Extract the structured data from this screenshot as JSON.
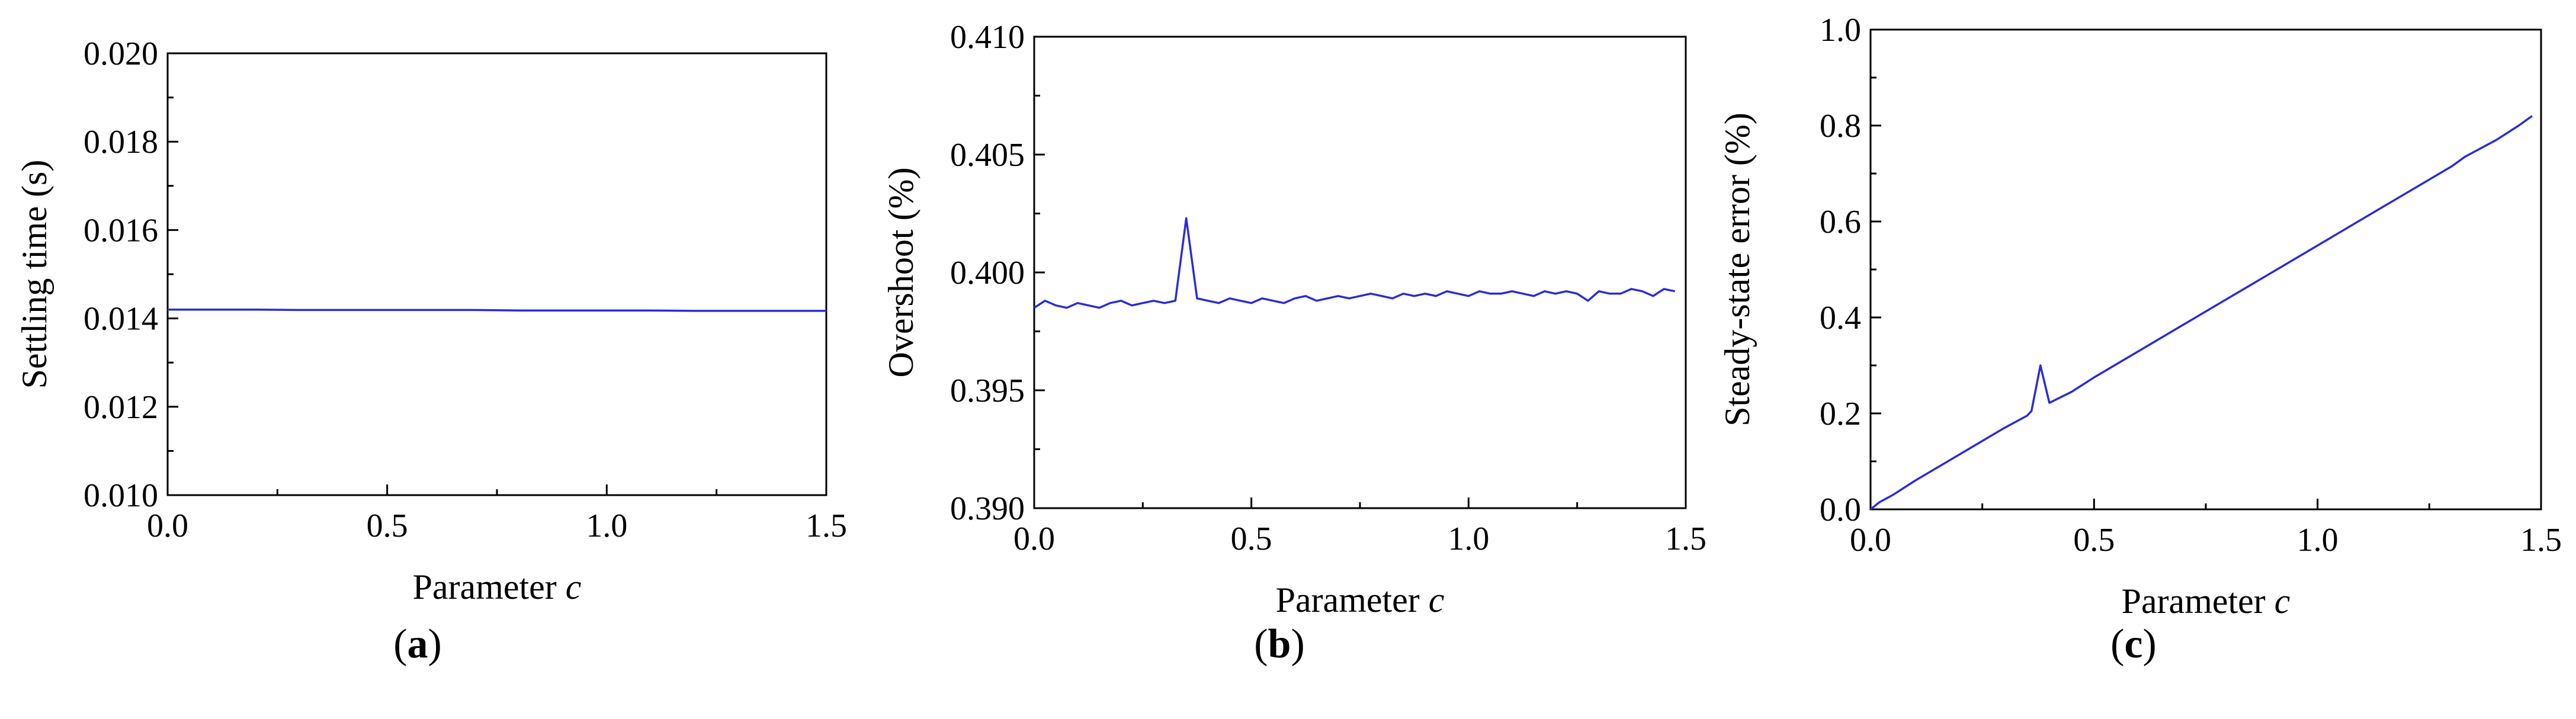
{
  "chart_data": [
    {
      "type": "line",
      "panel": "(a)",
      "panel_letter": "a",
      "xlabel": "Parameter",
      "xlabel_italic": "c",
      "ylabel": "Settling time (s)",
      "xlim": [
        0.0,
        1.5
      ],
      "ylim": [
        0.01,
        0.02
      ],
      "xticks": [
        "0.0",
        "0.5",
        "1.0",
        "1.5"
      ],
      "yticks": [
        "0.010",
        "0.012",
        "0.014",
        "0.016",
        "0.018",
        "0.020"
      ],
      "grid": false,
      "line_color": "#2b2bd9",
      "series": [
        {
          "x": [
            0.0,
            0.1,
            0.2,
            0.3,
            0.4,
            0.5,
            0.6,
            0.7,
            0.8,
            0.9,
            1.0,
            1.1,
            1.2,
            1.3,
            1.4,
            1.5
          ],
          "values": [
            0.0142,
            0.0142,
            0.0142,
            0.01419,
            0.01419,
            0.01419,
            0.01419,
            0.01419,
            0.01418,
            0.01418,
            0.01418,
            0.01418,
            0.01417,
            0.01417,
            0.01417,
            0.01417
          ]
        }
      ]
    },
    {
      "type": "line",
      "panel": "(b)",
      "panel_letter": "b",
      "xlabel": "Parameter",
      "xlabel_italic": "c",
      "ylabel": "Overshoot (%)",
      "xlim": [
        0.0,
        1.5
      ],
      "ylim": [
        0.39,
        0.41
      ],
      "xticks": [
        "0.0",
        "0.5",
        "1.0",
        "1.5"
      ],
      "yticks": [
        "0.390",
        "0.395",
        "0.400",
        "0.405",
        "0.410"
      ],
      "grid": false,
      "line_color": "#2b2bd9",
      "series": [
        {
          "x": [
            0.0,
            0.025,
            0.05,
            0.075,
            0.1,
            0.125,
            0.15,
            0.175,
            0.2,
            0.225,
            0.25,
            0.275,
            0.3,
            0.325,
            0.35,
            0.375,
            0.4,
            0.425,
            0.45,
            0.475,
            0.5,
            0.525,
            0.55,
            0.575,
            0.6,
            0.625,
            0.65,
            0.675,
            0.7,
            0.725,
            0.75,
            0.775,
            0.8,
            0.825,
            0.85,
            0.875,
            0.9,
            0.925,
            0.95,
            0.975,
            1.0,
            1.025,
            1.05,
            1.075,
            1.1,
            1.125,
            1.15,
            1.175,
            1.2,
            1.225,
            1.25,
            1.275,
            1.3,
            1.325,
            1.35,
            1.375,
            1.4,
            1.425,
            1.45,
            1.475
          ],
          "values": [
            0.3985,
            0.3988,
            0.3986,
            0.3985,
            0.3987,
            0.3986,
            0.3985,
            0.3987,
            0.3988,
            0.3986,
            0.3987,
            0.3988,
            0.3987,
            0.3988,
            0.4023,
            0.3989,
            0.3988,
            0.3987,
            0.3989,
            0.3988,
            0.3987,
            0.3989,
            0.3988,
            0.3987,
            0.3989,
            0.399,
            0.3988,
            0.3989,
            0.399,
            0.3989,
            0.399,
            0.3991,
            0.399,
            0.3989,
            0.3991,
            0.399,
            0.3991,
            0.399,
            0.3992,
            0.3991,
            0.399,
            0.3992,
            0.3991,
            0.3991,
            0.3992,
            0.3991,
            0.399,
            0.3992,
            0.3991,
            0.3992,
            0.3991,
            0.3988,
            0.3992,
            0.3991,
            0.3991,
            0.3993,
            0.3992,
            0.399,
            0.3993,
            0.3992
          ]
        }
      ]
    },
    {
      "type": "line",
      "panel": "(c)",
      "panel_letter": "c",
      "xlabel": "Parameter",
      "xlabel_italic": "c",
      "ylabel": "Steady-state error (%)",
      "xlim": [
        0.0,
        1.5
      ],
      "ylim": [
        0.0,
        1.0
      ],
      "xticks": [
        "0.0",
        "0.5",
        "1.0",
        "1.5"
      ],
      "yticks": [
        "0.0",
        "0.2",
        "0.4",
        "0.6",
        "0.8",
        "1.0"
      ],
      "grid": false,
      "line_color": "#2b2bd9",
      "series": [
        {
          "x": [
            0.0,
            0.02,
            0.05,
            0.1,
            0.2,
            0.3,
            0.35,
            0.36,
            0.38,
            0.4,
            0.45,
            0.5,
            0.6,
            0.7,
            0.8,
            0.9,
            1.0,
            1.1,
            1.2,
            1.3,
            1.33,
            1.35,
            1.4,
            1.45,
            1.48
          ],
          "values": [
            0.0,
            0.015,
            0.03,
            0.06,
            0.115,
            0.17,
            0.195,
            0.205,
            0.3,
            0.222,
            0.245,
            0.275,
            0.33,
            0.385,
            0.44,
            0.495,
            0.55,
            0.605,
            0.66,
            0.715,
            0.735,
            0.745,
            0.77,
            0.8,
            0.82
          ]
        }
      ]
    }
  ]
}
